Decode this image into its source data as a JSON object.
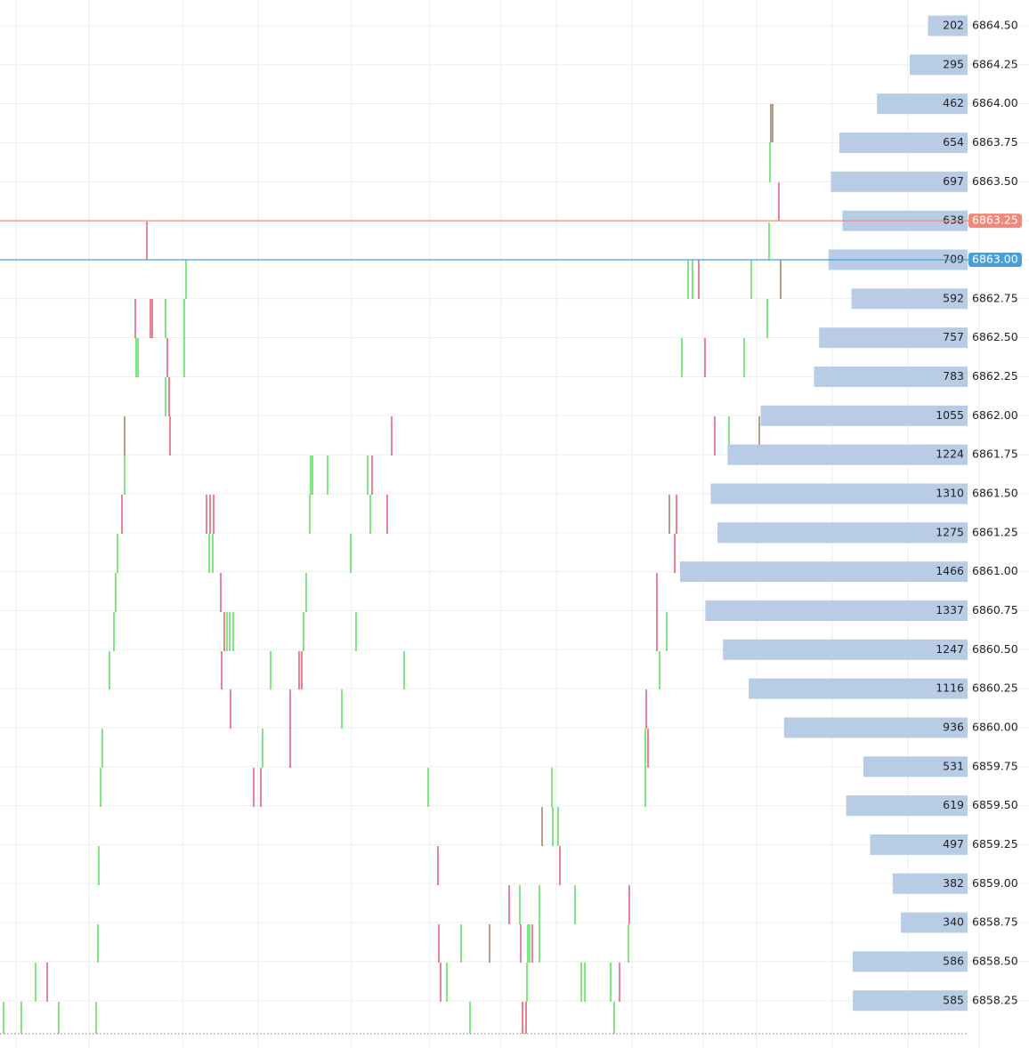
{
  "chart_data": {
    "type": "bar",
    "orientation": "horizontal",
    "categories": [
      "6864.50",
      "6864.25",
      "6864.00",
      "6863.75",
      "6863.50",
      "6863.25",
      "6863.00",
      "6862.75",
      "6862.50",
      "6862.25",
      "6862.00",
      "6861.75",
      "6861.50",
      "6861.25",
      "6861.00",
      "6860.75",
      "6860.50",
      "6860.25",
      "6860.00",
      "6859.75",
      "6859.50",
      "6859.25",
      "6859.00",
      "6858.75",
      "6858.50",
      "6858.25"
    ],
    "values": [
      202,
      295,
      462,
      654,
      697,
      638,
      709,
      592,
      757,
      783,
      1055,
      1224,
      1310,
      1275,
      1466,
      1337,
      1247,
      1116,
      936,
      531,
      619,
      497,
      382,
      340,
      586,
      585
    ],
    "color": "#b9cce6",
    "highlights": {
      "6863.25": "#ef8a7a",
      "6863.00": "#4a9fd6"
    },
    "grid": true
  }
}
